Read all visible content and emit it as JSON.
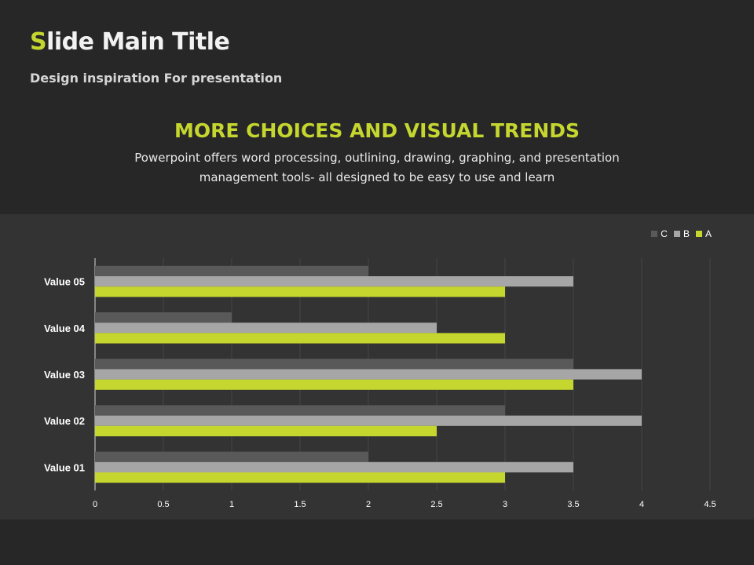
{
  "slide": {
    "title_first": "S",
    "title_rest": "lide Main Title",
    "subtitle": "Design inspiration For presentation",
    "heading": "MORE CHOICES AND VISUAL TRENDS",
    "description": "Powerpoint offers word processing, outlining, drawing, graphing, and presentation management tools- all designed to be easy to use and learn"
  },
  "colors": {
    "accent": "#c5d62f",
    "series_a": "#c5d62f",
    "series_b": "#a6a6a6",
    "series_c": "#595959",
    "panel": "#333333",
    "background": "#272727"
  },
  "chart_data": {
    "type": "bar",
    "orientation": "horizontal",
    "categories": [
      "Value 01",
      "Value 02",
      "Value 03",
      "Value 04",
      "Value 05"
    ],
    "series": [
      {
        "name": "A",
        "values": [
          3,
          2.5,
          3.5,
          3,
          3
        ]
      },
      {
        "name": "B",
        "values": [
          3.5,
          4,
          4,
          2.5,
          3.5
        ]
      },
      {
        "name": "C",
        "values": [
          2,
          3,
          3.5,
          1,
          2
        ]
      }
    ],
    "xlim": [
      0,
      4.5
    ],
    "x_ticks": [
      "0",
      "0.5",
      "1",
      "1.5",
      "2",
      "2.5",
      "3",
      "3.5",
      "4",
      "4.5"
    ],
    "legend_order": [
      "C",
      "B",
      "A"
    ],
    "legend_position": "top-right",
    "grid": true
  }
}
